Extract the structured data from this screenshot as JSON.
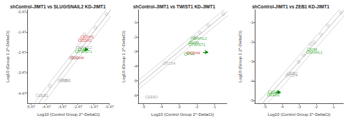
{
  "chart_data": [
    {
      "type": "scatter",
      "title": "shControl-JIMT1 vs SLUG/SNAIL2 KD-JIMT1",
      "xlabel": "Log10 (Control Group 2^-DeltaCt)",
      "ylabel": "Log10 (Group 1 2^-DeltaCt)",
      "xlim": [
        -5.67,
        -0.47
      ],
      "ylim": [
        -4.97,
        -0.37
      ],
      "xticks": [
        -5.47,
        -4.47,
        -3.47,
        -2.47,
        -1.47,
        -0.47
      ],
      "yticks": [
        -4.47,
        -3.47,
        -2.47,
        -1.47,
        -0.47
      ],
      "grid": false,
      "marker": "hollow_circle",
      "x": [
        -0.65,
        -1.35,
        -2.05,
        -2.2,
        -2.35,
        -2.5,
        -2.35,
        -2.55,
        -2.85,
        -2.95,
        -3.55,
        -3.65,
        -4.25,
        -5.05
      ],
      "y": [
        -0.58,
        -1.25,
        -1.57,
        -1.72,
        -1.87,
        -2.22,
        -2.32,
        -2.42,
        -2.72,
        -2.75,
        -3.82,
        -3.87,
        -4.12,
        -4.58
      ],
      "colors": [
        "#999999",
        "#999999",
        "#999999",
        "#cc0000",
        "#cc0000",
        "#999999",
        "#009900",
        "#009900",
        "#cc0000",
        "#999999",
        "#999999",
        "#999999",
        "#999999",
        "#999999"
      ],
      "annotations": [
        {
          "text": "CDH1",
          "x": -2.2,
          "y": -1.72,
          "color": "#cc0000"
        },
        {
          "text": "CDH2",
          "x": -2.35,
          "y": -1.87,
          "color": "#cc0000"
        },
        {
          "text": "SNAIL2",
          "x": -2.5,
          "y": -2.22,
          "color": "#888888"
        },
        {
          "text": "VIM",
          "x": -2.35,
          "y": -2.32,
          "color": "#009900"
        },
        {
          "text": "TWIST1",
          "x": -2.55,
          "y": -2.42,
          "color": "#009900"
        },
        {
          "text": "CDH4",
          "x": -2.85,
          "y": -2.72,
          "color": "#cc0000"
        },
        {
          "text": "FN1",
          "x": -2.95,
          "y": -2.75,
          "color": "#888888"
        },
        {
          "text": "SBC",
          "x": -3.55,
          "y": -3.82,
          "color": "#888888"
        },
        {
          "text": "TCF4",
          "x": -3.65,
          "y": -3.87,
          "color": "#888888"
        },
        {
          "text": "ZEB1",
          "x": -5.05,
          "y": -4.58,
          "color": "#888888"
        }
      ],
      "arrow": {
        "x1": -2.12,
        "y1": -2.32,
        "x2": -1.82,
        "y2": -2.32,
        "color": "green"
      },
      "reference_lines": [
        {
          "slope": 1,
          "intercept": 0.3010299956639812,
          "color": "#cccccc"
        },
        {
          "slope": 1,
          "intercept": 0,
          "color": "#aaaaaa"
        },
        {
          "slope": 1,
          "intercept": -0.3010299956639812,
          "color": "#cccccc"
        }
      ]
    },
    {
      "type": "scatter",
      "title": "shControl-JIMT1 vs TWIST1 KD-JIMT1",
      "xlabel": "Log10 (Control Group 2^-DeltaCt)",
      "ylabel": "Log10 (Group 1 2^-DeltaCt)",
      "xlim": [
        -5.3,
        -0.3
      ],
      "ylim": [
        -6.55,
        -0.15
      ],
      "xticks": [
        -5.0,
        -4.0,
        -3.0,
        -2.0,
        -1.0
      ],
      "yticks": [
        -6.0,
        -5.0,
        -4.0,
        -3.0,
        -2.0,
        -1.0
      ],
      "grid": false,
      "marker": "hollow_circle",
      "x": [
        -0.5,
        -1.35,
        -1.82,
        -2.05,
        -2.15,
        -2.25,
        -2.35,
        -2.38,
        -2.48,
        -2.62,
        -3.82,
        -4.82
      ],
      "y": [
        -0.45,
        -1.22,
        -1.72,
        -2.0,
        -2.08,
        -2.12,
        -2.38,
        -2.52,
        -3.1,
        -3.18,
        -3.82,
        -6.12
      ],
      "colors": [
        "#999999",
        "#999999",
        "#999999",
        "#999999",
        "#999999",
        "#009900",
        "#009900",
        "#009900",
        "#cc0000",
        "#009900",
        "#999999",
        "#999999"
      ],
      "annotations": [
        {
          "text": "SNAIL2",
          "x": -2.25,
          "y": -2.12,
          "color": "#009900"
        },
        {
          "text": "VIM",
          "x": -2.35,
          "y": -2.38,
          "color": "#009900"
        },
        {
          "text": "TWIST1",
          "x": -2.38,
          "y": -2.52,
          "color": "#009900"
        },
        {
          "text": "CDH4",
          "x": -2.48,
          "y": -3.1,
          "color": "#cc0000"
        },
        {
          "text": "FN1",
          "x": -2.62,
          "y": -3.18,
          "color": "#009900"
        },
        {
          "text": "TCF4",
          "x": -3.82,
          "y": -3.82,
          "color": "#888888"
        },
        {
          "text": "ZEB2",
          "x": -4.82,
          "y": -6.12,
          "color": "#888888"
        }
      ],
      "arrow": {
        "x1": -1.65,
        "y1": -3.05,
        "x2": -1.35,
        "y2": -3.05,
        "color": "green"
      },
      "reference_lines": [
        {
          "slope": 1,
          "intercept": 0.3010299956639812,
          "color": "#cccccc"
        },
        {
          "slope": 1,
          "intercept": 0,
          "color": "#aaaaaa"
        },
        {
          "slope": 1,
          "intercept": -0.3010299956639812,
          "color": "#cccccc"
        }
      ]
    },
    {
      "type": "scatter",
      "title": "shControl-JIMT1 vs ZEB1 KD-JIMT1",
      "xlabel": "Log10 (Control Group 2^-DeltaCt)",
      "ylabel": "Log10 (Group 1 2^-DeltaCt)",
      "xlim": [
        -5.6,
        -0.4
      ],
      "ylim": [
        -5.15,
        -0.35
      ],
      "xticks": [
        -5.0,
        -4.0,
        -3.0,
        -2.0,
        -1.0
      ],
      "yticks": [
        -5.0,
        -4.0,
        -3.0,
        -2.0,
        -1.0
      ],
      "grid": false,
      "marker": "hollow_circle",
      "x": [
        -0.55,
        -1.32,
        -1.72,
        -2.12,
        -2.32,
        -2.42,
        -2.48,
        -2.72,
        -3.02,
        -3.62,
        -3.72,
        -4.72,
        -4.78
      ],
      "y": [
        -0.5,
        -1.15,
        -1.62,
        -2.02,
        -2.12,
        -2.38,
        -2.52,
        -2.68,
        -3.02,
        -3.62,
        -3.72,
        -4.58,
        -4.72
      ],
      "colors": [
        "#999999",
        "#999999",
        "#999999",
        "#999999",
        "#999999",
        "#009900",
        "#009900",
        "#999999",
        "#999999",
        "#999999",
        "#999999",
        "#009900",
        "#009900"
      ],
      "annotations": [
        {
          "text": "VIM",
          "x": -2.42,
          "y": -2.38,
          "color": "#009900"
        },
        {
          "text": "SNAIL1",
          "x": -2.48,
          "y": -2.52,
          "color": "#009900"
        },
        {
          "text": "SBC",
          "x": -3.62,
          "y": -3.62,
          "color": "#888888"
        },
        {
          "text": "TCF4",
          "x": -3.72,
          "y": -3.72,
          "color": "#888888"
        },
        {
          "text": "ZEB1",
          "x": -4.72,
          "y": -4.58,
          "color": "#009900"
        },
        {
          "text": "ZEB2",
          "x": -4.78,
          "y": -4.72,
          "color": "#009900"
        }
      ],
      "arrow": {
        "x1": -4.38,
        "y1": -4.58,
        "x2": -4.08,
        "y2": -4.58,
        "color": "green"
      },
      "reference_lines": [
        {
          "slope": 1,
          "intercept": 0.3010299956639812,
          "color": "#cccccc"
        },
        {
          "slope": 1,
          "intercept": 0,
          "color": "#aaaaaa"
        },
        {
          "slope": 1,
          "intercept": -0.3010299956639812,
          "color": "#cccccc"
        }
      ]
    }
  ]
}
